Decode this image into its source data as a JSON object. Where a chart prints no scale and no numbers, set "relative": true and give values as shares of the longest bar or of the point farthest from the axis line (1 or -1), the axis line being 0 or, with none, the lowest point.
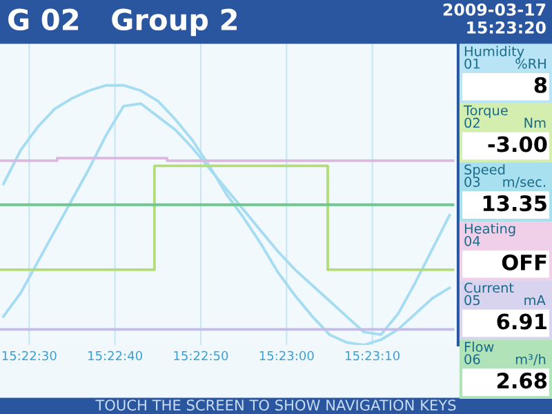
{
  "chart_data": [
    {
      "type": "line",
      "title": "G 02   Group 2",
      "annotations": [
        "2009-03-17",
        "15:23:20",
        "TOUCH THE SCREEN TO SHOW NAVIGATION KEYS"
      ],
      "relative": true,
      "grid": "x",
      "legend": false,
      "x": [
        15.3741667,
        15.3747222,
        15.3752778,
        15.3758333,
        15.3763889,
        15.3769444,
        15.3775,
        15.3780556,
        15.3786111,
        15.3791667,
        15.3797222,
        15.3802778,
        15.3808333,
        15.3813889,
        15.3819444,
        15.3825,
        15.3830556,
        15.3836111,
        15.3841667,
        15.3847222,
        15.3852778,
        15.3858333,
        15.3863889,
        15.3869444,
        15.3875,
        15.3880556,
        15.3886111
      ],
      "xlim": [
        15.3740556,
        15.3888889
      ],
      "xticks": [
        {
          "value": 15.375,
          "label": "15:22:30"
        },
        {
          "value": 15.3777778,
          "label": "15:22:40"
        },
        {
          "value": 15.3805556,
          "label": "15:22:50"
        },
        {
          "value": 15.3833333,
          "label": "15:23:00"
        },
        {
          "value": 15.3861111,
          "label": "15:23:10"
        }
      ],
      "series": [
        {
          "color": "#a6dcf2",
          "values": [
            0.62,
            0.75,
            0.84,
            0.91,
            0.95,
            0.98,
            1.0,
            1.0,
            0.98,
            0.94,
            0.87,
            0.79,
            0.69,
            0.58,
            0.49,
            0.39,
            0.28,
            0.19,
            0.11,
            0.04,
            0.01,
            0,
            0.02,
            0.06,
            0.12,
            0.18,
            0.22
          ]
        },
        {
          "color": "#a6dcf2",
          "values": [
            0.11,
            0.2,
            0.32,
            0.44,
            0.56,
            0.68,
            0.81,
            0.92,
            0.93,
            0.88,
            0.83,
            0.76,
            0.68,
            0.6,
            0.52,
            0.44,
            0.36,
            0.29,
            0.23,
            0.17,
            0.11,
            0.05,
            0.04,
            0.12,
            0.24,
            0.37,
            0.5
          ]
        },
        {
          "type": "step",
          "color": "#dcb8e0",
          "x": [
            15.3740556,
            15.3759083,
            15.3794639,
            15.3887222
          ],
          "values": [
            0.71,
            0.72,
            0.71,
            0.71
          ]
        },
        {
          "type": "step",
          "color": "#b4dc78",
          "x": [
            15.3740556,
            15.3790556,
            15.3846667,
            15.3887222
          ],
          "values": [
            0.29,
            0.69,
            0.29,
            0.29
          ]
        },
        {
          "type": "line",
          "color": "#6cc88c",
          "x": [
            15.3740556,
            15.3887222
          ],
          "values": [
            0.54,
            0.54
          ]
        },
        {
          "type": "line",
          "color": "#c4bce8",
          "x": [
            15.3740556,
            15.3887222
          ],
          "values": [
            0.06,
            0.06
          ]
        }
      ]
    },
    {
      "type": "other",
      "colors": [
        "#b8e4f6",
        "#d4eeb0",
        "#a8e0f0",
        "#f0d0e8",
        "#d8d4f0",
        "#b0e4b8"
      ],
      "annotations": [
        "Humidity",
        "01 %RH",
        "8",
        "Torque",
        "02 Nm",
        "-3.00",
        "Speed",
        "03 m/sec.",
        "13.35",
        "Heating",
        "04",
        "OFF",
        "Current",
        "05 mA",
        "6.91",
        "Flow",
        "06 m³/h",
        "2.68"
      ]
    }
  ]
}
